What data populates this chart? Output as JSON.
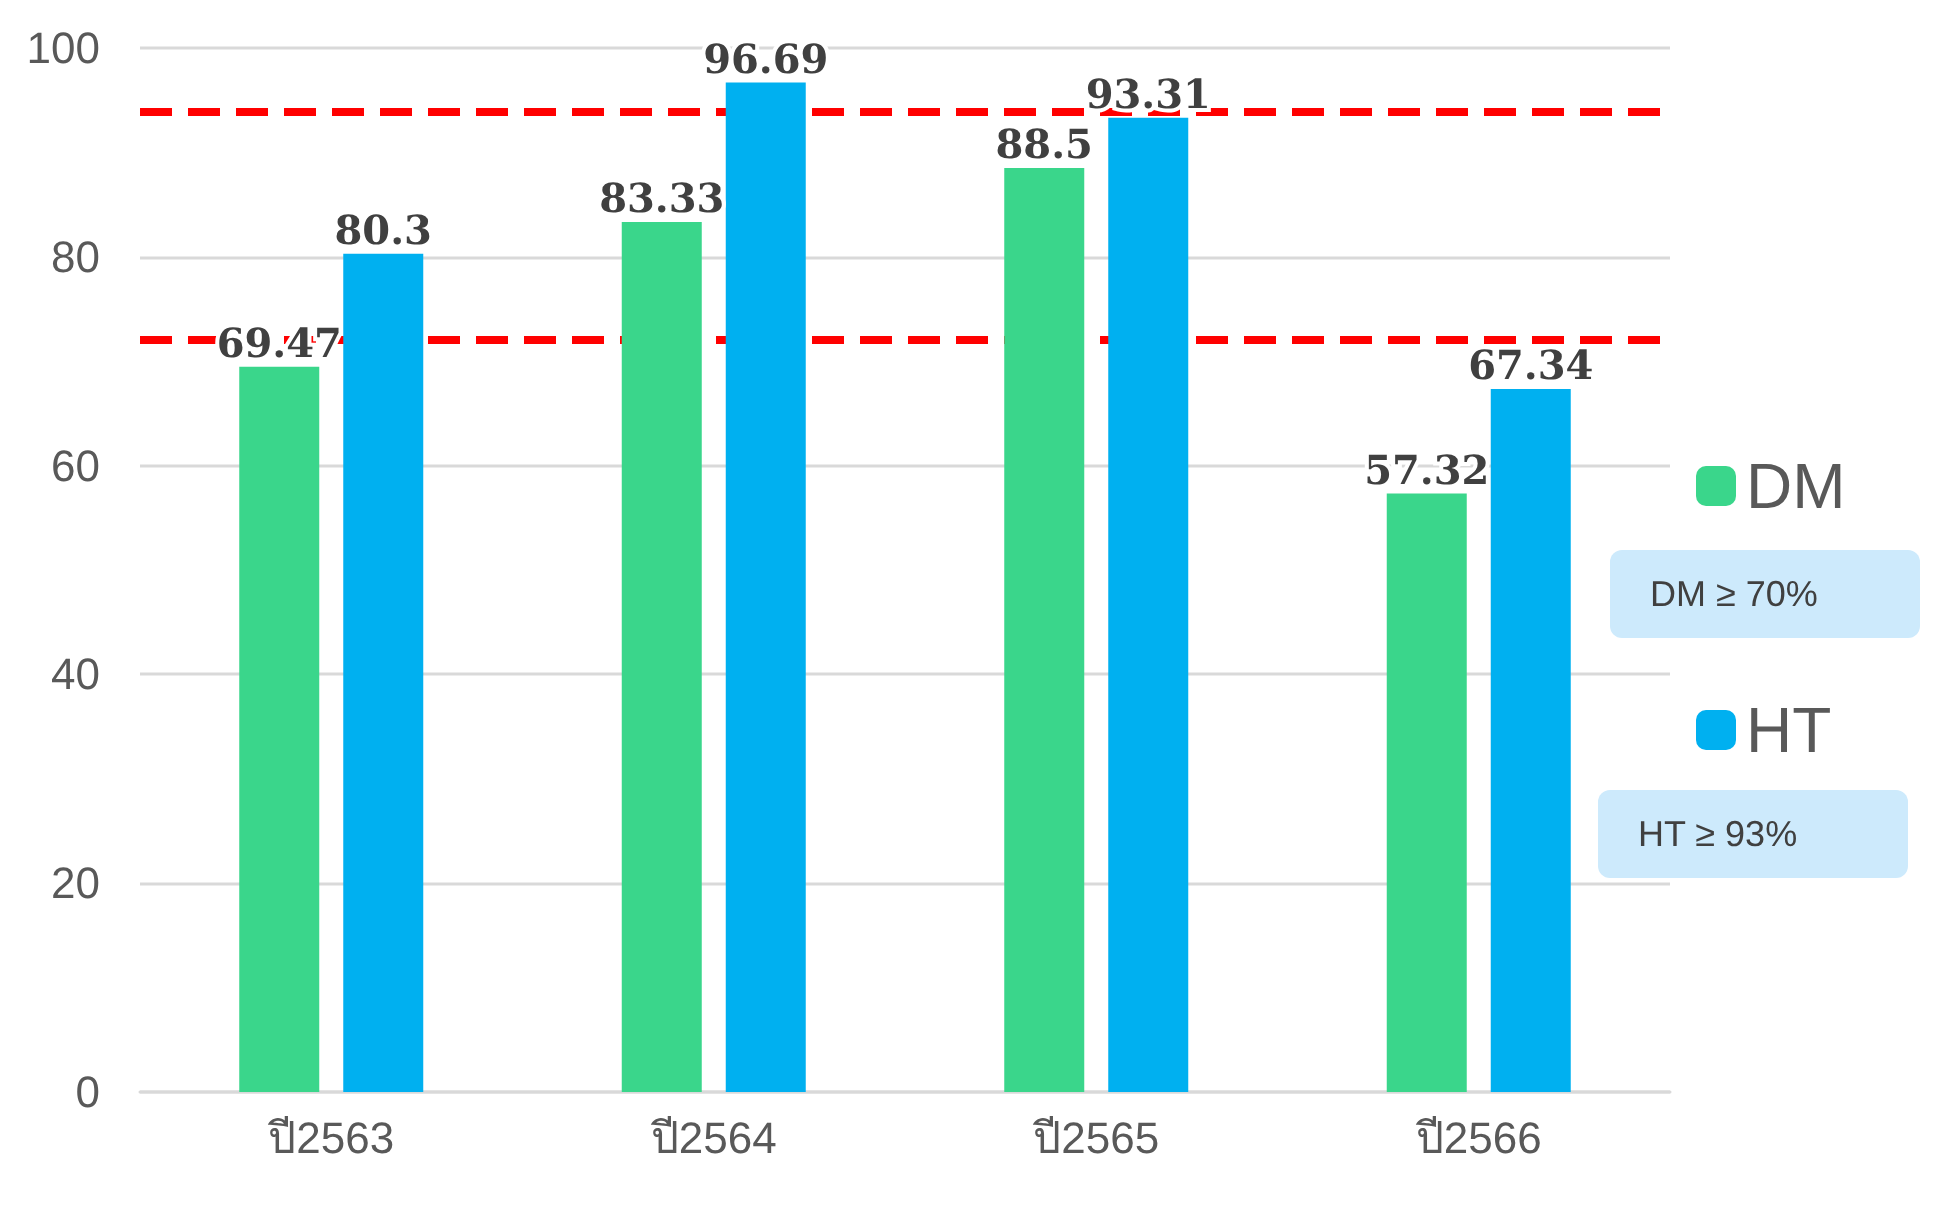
{
  "chart_data": {
    "type": "bar",
    "categories": [
      "ปี2563",
      "ปี2564",
      "ปี2565",
      "ปี2566"
    ],
    "series": [
      {
        "name": "DM",
        "color": "#3ad68b",
        "values": [
          69.47,
          83.33,
          88.5,
          57.32
        ]
      },
      {
        "name": "HT",
        "color": "#00b0f0",
        "values": [
          80.3,
          96.69,
          93.31,
          67.34
        ]
      }
    ],
    "ylim": [
      0,
      100
    ],
    "yticks": [
      0,
      20,
      40,
      60,
      80,
      100
    ],
    "grid": "y",
    "legend": "right",
    "data_labels": true,
    "ref_lines": [
      {
        "axis": "y",
        "value": 72,
        "color": "#ff0000",
        "line_style": "dashed"
      },
      {
        "axis": "y",
        "value": 94,
        "color": "#ff0000",
        "line_style": "dashed"
      }
    ],
    "annotations": [
      "DM ≥ 70%",
      "HT ≥ 93%"
    ]
  }
}
